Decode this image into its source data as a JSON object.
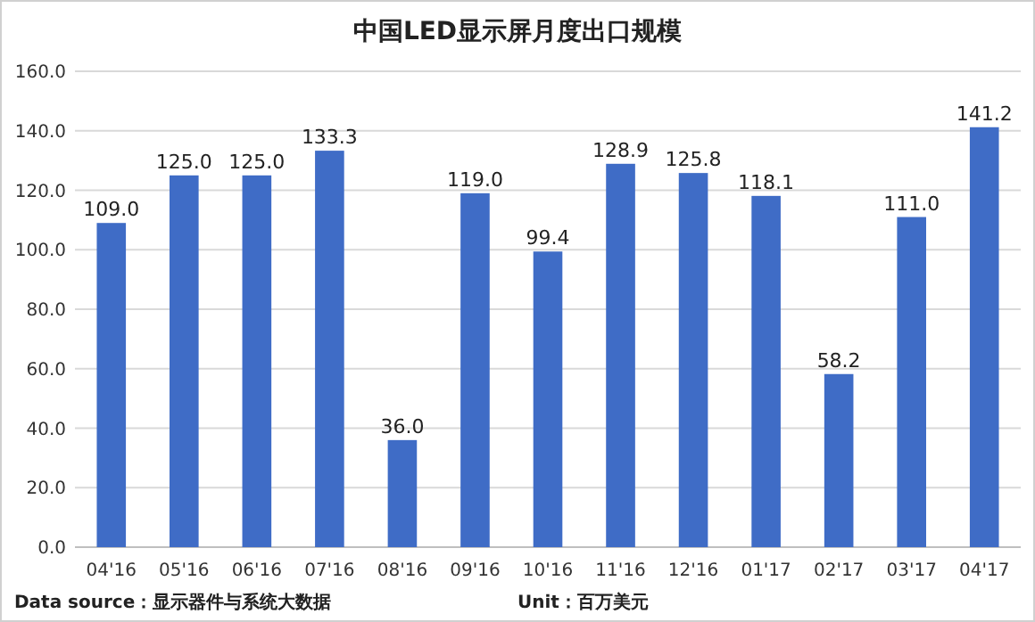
{
  "chart_data": {
    "type": "bar",
    "title": "中国LED显示屏月度出口规模",
    "categories": [
      "04'16",
      "05'16",
      "06'16",
      "07'16",
      "08'16",
      "09'16",
      "10'16",
      "11'16",
      "12'16",
      "01'17",
      "02'17",
      "03'17",
      "04'17"
    ],
    "values": [
      109.0,
      125.0,
      125.0,
      133.3,
      36.0,
      119.0,
      99.4,
      128.9,
      125.8,
      118.1,
      58.2,
      111.0,
      141.2
    ],
    "value_labels": [
      "109.0",
      "125.0",
      "125.0",
      "133.3",
      "36.0",
      "119.0",
      "99.4",
      "128.9",
      "125.8",
      "118.1",
      "58.2",
      "111.0",
      "141.2"
    ],
    "color": "#3f6cc6",
    "ylim": [
      0,
      160
    ],
    "yticks": [
      {
        "value": 0,
        "label": "0.0"
      },
      {
        "value": 20,
        "label": "20.0"
      },
      {
        "value": 40,
        "label": "40.0"
      },
      {
        "value": 60,
        "label": "60.0"
      },
      {
        "value": 80,
        "label": "80.0"
      },
      {
        "value": 100,
        "label": "100.0"
      },
      {
        "value": 120,
        "label": "120.0"
      },
      {
        "value": 140,
        "label": "140.0"
      },
      {
        "value": 160,
        "label": "160.0"
      }
    ],
    "grid": "y",
    "annotations": [
      "Data source：显示器件与系统大数据",
      "Unit：百万美元"
    ]
  }
}
